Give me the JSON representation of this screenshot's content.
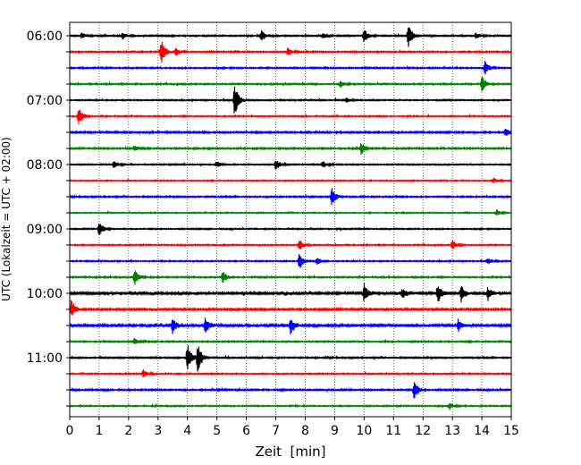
{
  "chart_data": {
    "type": "line",
    "chart_subtype": "helicorder (seismogram drum plot)",
    "title": "",
    "xlabel": "Zeit  [min]",
    "ylabel": "UTC (Lokalzeit = UTC + 02:00)",
    "xlim": [
      0,
      15
    ],
    "x_ticks": [
      "0",
      "1",
      "2",
      "3",
      "4",
      "5",
      "6",
      "7",
      "8",
      "9",
      "10",
      "11",
      "12",
      "13",
      "14",
      "15"
    ],
    "y_tick_labels": [
      "06:00",
      "07:00",
      "08:00",
      "09:00",
      "10:00",
      "11:00"
    ],
    "grid": "vertical dotted lines at each minute",
    "trace_interval_minutes": 15,
    "trace_color_cycle": [
      "#000000",
      "#ff0000",
      "#0000ff",
      "#008000"
    ],
    "traces": [
      {
        "start": "06:00",
        "color": "#000000",
        "noise": 0.9,
        "events": [
          {
            "t": 0.4,
            "amp": 1.0
          },
          {
            "t": 1.8,
            "amp": 1.2
          },
          {
            "t": 6.5,
            "amp": 1.6
          },
          {
            "t": 8.6,
            "amp": 1.0
          },
          {
            "t": 10.0,
            "amp": 2.2
          },
          {
            "t": 11.5,
            "amp": 3.2
          },
          {
            "t": 13.8,
            "amp": 1.0
          }
        ]
      },
      {
        "start": "06:15",
        "color": "#ff0000",
        "noise": 0.9,
        "events": [
          {
            "t": 3.1,
            "amp": 4.0
          },
          {
            "t": 3.6,
            "amp": 1.2
          },
          {
            "t": 7.4,
            "amp": 1.2
          }
        ]
      },
      {
        "start": "06:30",
        "color": "#0000ff",
        "noise": 0.9,
        "events": [
          {
            "t": 14.1,
            "amp": 2.0
          }
        ]
      },
      {
        "start": "06:45",
        "color": "#008000",
        "noise": 0.9,
        "events": [
          {
            "t": 9.2,
            "amp": 1.0
          },
          {
            "t": 14.0,
            "amp": 2.5
          }
        ]
      },
      {
        "start": "07:00",
        "color": "#000000",
        "noise": 0.8,
        "events": [
          {
            "t": 5.6,
            "amp": 4.8
          },
          {
            "t": 9.4,
            "amp": 0.8
          }
        ]
      },
      {
        "start": "07:15",
        "color": "#ff0000",
        "noise": 0.8,
        "events": [
          {
            "t": 0.3,
            "amp": 2.8
          }
        ]
      },
      {
        "start": "07:30",
        "color": "#0000ff",
        "noise": 1.1,
        "events": [
          {
            "t": 14.8,
            "amp": 1.2
          }
        ]
      },
      {
        "start": "07:45",
        "color": "#008000",
        "noise": 1.0,
        "events": [
          {
            "t": 9.9,
            "amp": 2.0
          },
          {
            "t": 2.2,
            "amp": 0.8
          }
        ]
      },
      {
        "start": "08:00",
        "color": "#000000",
        "noise": 0.8,
        "events": [
          {
            "t": 1.5,
            "amp": 1.0
          },
          {
            "t": 5.0,
            "amp": 1.0
          },
          {
            "t": 7.0,
            "amp": 1.8
          },
          {
            "t": 8.6,
            "amp": 1.0
          }
        ]
      },
      {
        "start": "08:15",
        "color": "#ff0000",
        "noise": 0.7,
        "events": [
          {
            "t": 14.4,
            "amp": 0.8
          }
        ]
      },
      {
        "start": "08:30",
        "color": "#0000ff",
        "noise": 0.9,
        "events": [
          {
            "t": 8.9,
            "amp": 2.6
          }
        ]
      },
      {
        "start": "08:45",
        "color": "#008000",
        "noise": 0.7,
        "events": [
          {
            "t": 14.5,
            "amp": 1.0
          }
        ]
      },
      {
        "start": "09:00",
        "color": "#000000",
        "noise": 0.8,
        "events": [
          {
            "t": 1.0,
            "amp": 2.2
          }
        ]
      },
      {
        "start": "09:15",
        "color": "#ff0000",
        "noise": 0.8,
        "events": [
          {
            "t": 7.8,
            "amp": 1.6
          },
          {
            "t": 13.0,
            "amp": 1.4
          }
        ]
      },
      {
        "start": "09:30",
        "color": "#0000ff",
        "noise": 0.8,
        "events": [
          {
            "t": 7.8,
            "amp": 2.6
          },
          {
            "t": 8.4,
            "amp": 1.2
          },
          {
            "t": 14.2,
            "amp": 1.0
          }
        ]
      },
      {
        "start": "09:45",
        "color": "#008000",
        "noise": 0.9,
        "events": [
          {
            "t": 2.2,
            "amp": 2.2
          },
          {
            "t": 5.2,
            "amp": 2.0
          }
        ]
      },
      {
        "start": "10:00",
        "color": "#000000",
        "noise": 1.6,
        "events": [
          {
            "t": 10.0,
            "amp": 2.6
          },
          {
            "t": 11.3,
            "amp": 1.6
          },
          {
            "t": 12.5,
            "amp": 2.8
          },
          {
            "t": 13.3,
            "amp": 2.2
          },
          {
            "t": 14.2,
            "amp": 2.0
          }
        ]
      },
      {
        "start": "10:15",
        "color": "#ff0000",
        "noise": 1.3,
        "events": [
          {
            "t": 0.05,
            "amp": 2.6
          }
        ]
      },
      {
        "start": "10:30",
        "color": "#0000ff",
        "noise": 1.6,
        "events": [
          {
            "t": 3.5,
            "amp": 2.2
          },
          {
            "t": 4.6,
            "amp": 2.4
          },
          {
            "t": 7.5,
            "amp": 2.4
          },
          {
            "t": 13.2,
            "amp": 1.6
          }
        ]
      },
      {
        "start": "10:45",
        "color": "#008000",
        "noise": 0.9,
        "events": [
          {
            "t": 2.2,
            "amp": 1.0
          }
        ]
      },
      {
        "start": "11:00",
        "color": "#000000",
        "noise": 0.9,
        "events": [
          {
            "t": 4.0,
            "amp": 4.6
          },
          {
            "t": 4.35,
            "amp": 4.2
          }
        ]
      },
      {
        "start": "11:15",
        "color": "#ff0000",
        "noise": 0.8,
        "events": [
          {
            "t": 2.5,
            "amp": 1.2
          }
        ]
      },
      {
        "start": "11:30",
        "color": "#0000ff",
        "noise": 1.0,
        "events": [
          {
            "t": 11.7,
            "amp": 3.0
          }
        ]
      },
      {
        "start": "11:45",
        "color": "#008000",
        "noise": 0.8,
        "events": [
          {
            "t": 12.9,
            "amp": 1.0
          }
        ]
      }
    ]
  }
}
